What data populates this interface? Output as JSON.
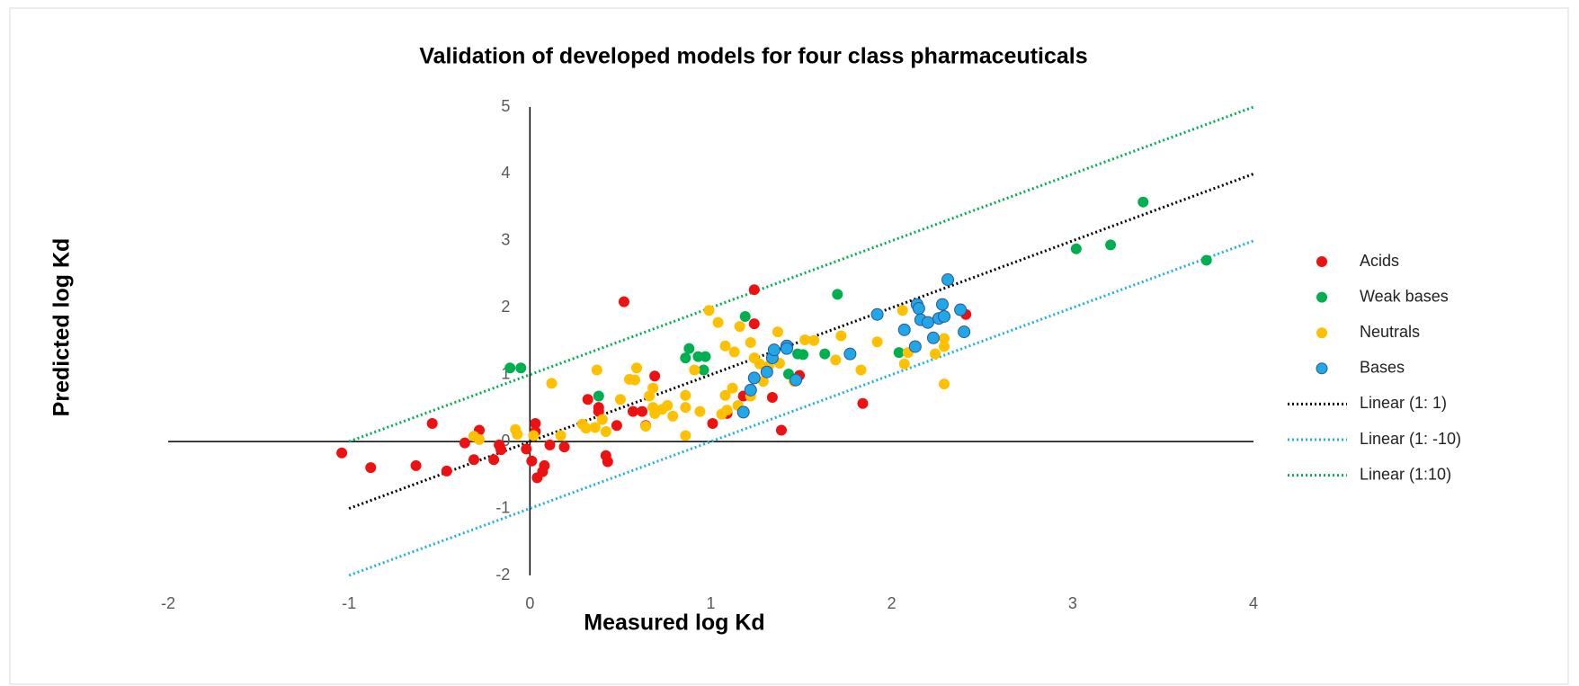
{
  "chart_data": {
    "type": "scatter",
    "title": "Validation of developed models for four class pharmaceuticals",
    "x_label": "Measured log Kd",
    "y_label": "Predicted log Kd",
    "xlim": [
      -2,
      4
    ],
    "ylim": [
      -2,
      5
    ],
    "xticks": [
      -2,
      -1,
      0,
      1,
      2,
      3,
      4
    ],
    "yticks": [
      -2,
      -1,
      0,
      1,
      2,
      3,
      4,
      5
    ],
    "legend": "right",
    "series": [
      {
        "name": "Acids",
        "color": "#ee1111",
        "mode": "markers",
        "x": [
          -1.04,
          -0.88,
          -0.63,
          -0.54,
          -0.46,
          -0.36,
          -0.31,
          -0.28,
          -0.2,
          -0.17,
          -0.16,
          -0.02,
          0.01,
          0.03,
          0.04,
          0.07,
          0.08,
          0.11,
          0.19,
          0.03,
          0.32,
          0.38,
          0.42,
          0.43,
          0.48,
          0.52,
          0.57,
          0.62,
          0.64,
          0.69,
          1.01,
          1.09,
          1.18,
          1.24,
          1.24,
          1.34,
          1.39,
          1.49,
          1.84,
          2.41,
          0.38
        ],
        "values": [
          -0.17,
          -0.39,
          -0.36,
          0.27,
          -0.44,
          -0.02,
          -0.27,
          0.17,
          -0.27,
          -0.05,
          -0.12,
          -0.11,
          -0.29,
          0.27,
          -0.54,
          -0.45,
          -0.36,
          -0.05,
          -0.08,
          0.15,
          0.63,
          0.45,
          -0.21,
          -0.3,
          0.24,
          2.09,
          0.45,
          0.45,
          0.24,
          0.98,
          0.27,
          0.42,
          0.68,
          1.76,
          2.27,
          0.66,
          0.17,
          0.99,
          0.57,
          1.9,
          0.51
        ]
      },
      {
        "name": "Weak bases",
        "color": "#00b050",
        "mode": "markers",
        "x": [
          -0.11,
          -0.05,
          0.38,
          0.86,
          0.88,
          0.93,
          0.97,
          0.96,
          1.19,
          1.43,
          1.48,
          1.51,
          1.63,
          1.7,
          2.04,
          3.02,
          3.21,
          3.39,
          3.74
        ],
        "values": [
          1.1,
          1.1,
          0.68,
          1.25,
          1.39,
          1.27,
          1.27,
          1.07,
          1.87,
          1.01,
          1.31,
          1.3,
          1.31,
          2.2,
          1.33,
          2.88,
          2.94,
          3.58,
          2.71
        ]
      },
      {
        "name": "Neutrals",
        "color": "#ffc000",
        "mode": "markers",
        "x": [
          -0.31,
          -0.28,
          -0.08,
          -0.07,
          0.02,
          0.12,
          0.17,
          0.29,
          0.31,
          0.36,
          0.37,
          0.4,
          0.42,
          0.5,
          0.55,
          0.58,
          0.59,
          0.64,
          0.66,
          0.68,
          0.68,
          0.69,
          0.73,
          0.76,
          0.79,
          0.86,
          0.86,
          0.86,
          0.91,
          0.94,
          0.99,
          1.04,
          1.06,
          1.08,
          1.09,
          1.08,
          1.12,
          1.13,
          1.16,
          1.15,
          1.22,
          1.22,
          1.24,
          1.27,
          1.29,
          1.32,
          1.37,
          1.38,
          1.46,
          1.52,
          1.57,
          1.69,
          1.72,
          1.83,
          1.92,
          2.06,
          2.07,
          2.09,
          2.24,
          2.29,
          2.29,
          2.29
        ],
        "values": [
          0.08,
          0.03,
          0.18,
          0.11,
          0.09,
          0.87,
          0.09,
          0.26,
          0.2,
          0.21,
          1.07,
          0.33,
          0.15,
          0.63,
          0.93,
          0.92,
          1.1,
          0.23,
          0.68,
          0.51,
          0.8,
          0.42,
          0.48,
          0.54,
          0.38,
          0.09,
          0.51,
          0.69,
          1.07,
          0.45,
          1.96,
          1.78,
          0.41,
          0.69,
          0.47,
          1.43,
          0.8,
          1.34,
          1.72,
          0.54,
          0.68,
          1.48,
          1.25,
          1.16,
          0.9,
          1.13,
          1.64,
          1.17,
          0.9,
          1.52,
          1.51,
          1.22,
          1.58,
          1.07,
          1.49,
          1.96,
          1.16,
          1.33,
          1.31,
          1.54,
          1.42,
          0.86
        ]
      },
      {
        "name": "Bases",
        "color": "#1fa7e8",
        "mode": "markers",
        "x": [
          1.18,
          1.22,
          1.24,
          1.31,
          1.34,
          1.35,
          1.42,
          1.42,
          1.47,
          1.77,
          1.92,
          2.07,
          2.13,
          2.14,
          2.15,
          2.16,
          2.2,
          2.23,
          2.26,
          2.28,
          2.29,
          2.31,
          2.38,
          2.4
        ],
        "values": [
          0.44,
          0.77,
          0.95,
          1.04,
          1.25,
          1.37,
          1.43,
          1.39,
          0.92,
          1.31,
          1.9,
          1.67,
          1.42,
          2.05,
          1.99,
          1.82,
          1.78,
          1.55,
          1.84,
          2.05,
          1.87,
          2.42,
          1.97,
          1.64
        ]
      },
      {
        "name": "Linear (1: 1)",
        "color": "#000000",
        "mode": "line",
        "x": [
          -1,
          4
        ],
        "values": [
          -1,
          4
        ]
      },
      {
        "name": "Linear (1: -10)",
        "color": "#1fb0e6",
        "mode": "line",
        "x": [
          -1,
          4
        ],
        "values": [
          -2,
          3
        ]
      },
      {
        "name": "Linear (1:10)",
        "color": "#00b050",
        "mode": "line",
        "x": [
          -1,
          4
        ],
        "values": [
          0,
          5
        ]
      }
    ]
  }
}
